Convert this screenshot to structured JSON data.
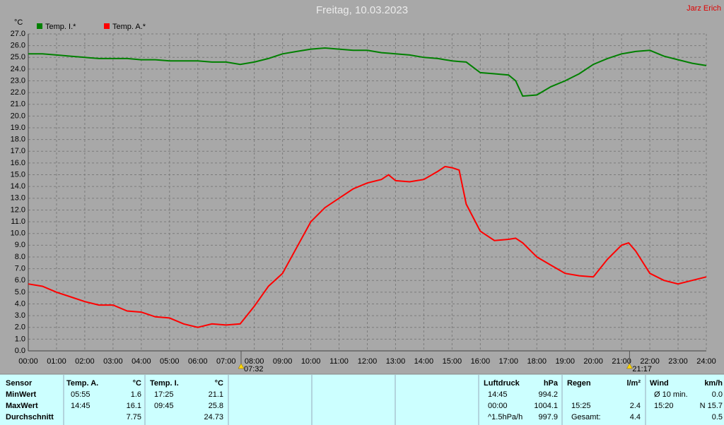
{
  "chart_data": {
    "type": "line",
    "title": "Freitag, 10.03.2023",
    "y_label": "°C",
    "x": [
      0,
      0.5,
      1,
      1.5,
      2,
      2.5,
      3,
      3.5,
      4,
      4.5,
      5,
      5.5,
      6,
      6.5,
      7,
      7.5,
      8,
      8.5,
      9,
      9.5,
      10,
      10.5,
      11,
      11.5,
      12,
      12.5,
      12.75,
      13,
      13.5,
      14,
      14.5,
      14.75,
      15,
      15.25,
      15.5,
      16,
      16.5,
      17,
      17.25,
      17.5,
      18,
      18.5,
      19,
      19.5,
      20,
      20.5,
      21,
      21.25,
      21.5,
      22,
      22.5,
      23,
      23.5,
      24
    ],
    "series": [
      {
        "name": "Temp. I.*",
        "color": "#008000",
        "values": [
          25.3,
          25.3,
          25.2,
          25.1,
          25.0,
          24.9,
          24.9,
          24.9,
          24.8,
          24.8,
          24.7,
          24.7,
          24.7,
          24.6,
          24.6,
          24.4,
          24.6,
          24.9,
          25.3,
          25.5,
          25.7,
          25.8,
          25.7,
          25.6,
          25.6,
          25.4,
          25.35,
          25.3,
          25.2,
          25.0,
          24.9,
          24.8,
          24.7,
          24.65,
          24.6,
          23.7,
          23.6,
          23.5,
          23.0,
          21.7,
          21.8,
          22.5,
          23.0,
          23.6,
          24.4,
          24.9,
          25.3,
          25.4,
          25.5,
          25.6,
          25.1,
          24.8,
          24.5,
          24.3
        ]
      },
      {
        "name": "Temp. A.*",
        "color": "#ff0000",
        "values": [
          5.7,
          5.5,
          5.0,
          4.6,
          4.2,
          3.9,
          3.9,
          3.4,
          3.3,
          2.9,
          2.8,
          2.3,
          2.0,
          2.3,
          2.2,
          2.3,
          3.8,
          5.5,
          6.6,
          8.8,
          11.0,
          12.2,
          13.0,
          13.8,
          14.3,
          14.6,
          15.0,
          14.5,
          14.4,
          14.6,
          15.3,
          15.7,
          15.6,
          15.4,
          12.5,
          10.2,
          9.4,
          9.5,
          9.6,
          9.2,
          8.0,
          7.3,
          6.6,
          6.4,
          6.3,
          7.8,
          9.0,
          9.2,
          8.5,
          6.6,
          6.0,
          5.7,
          6.0,
          6.3
        ]
      }
    ],
    "xlim": [
      0,
      24
    ],
    "xticks": [
      {
        "value": 0,
        "label": "00:00"
      },
      {
        "value": 1,
        "label": "01:00"
      },
      {
        "value": 2,
        "label": "02:00"
      },
      {
        "value": 3,
        "label": "03:00"
      },
      {
        "value": 4,
        "label": "04:00"
      },
      {
        "value": 5,
        "label": "05:00"
      },
      {
        "value": 6,
        "label": "06:00"
      },
      {
        "value": 7,
        "label": "07:00"
      },
      {
        "value": 8,
        "label": "08:00"
      },
      {
        "value": 9,
        "label": "09:00"
      },
      {
        "value": 10,
        "label": "10:00"
      },
      {
        "value": 11,
        "label": "11:00"
      },
      {
        "value": 12,
        "label": "12:00"
      },
      {
        "value": 13,
        "label": "13:00"
      },
      {
        "value": 14,
        "label": "14:00"
      },
      {
        "value": 15,
        "label": "15:00"
      },
      {
        "value": 16,
        "label": "16:00"
      },
      {
        "value": 17,
        "label": "17:00"
      },
      {
        "value": 18,
        "label": "18:00"
      },
      {
        "value": 19,
        "label": "19:00"
      },
      {
        "value": 20,
        "label": "20:00"
      },
      {
        "value": 21,
        "label": "21:00"
      },
      {
        "value": 22,
        "label": "22:00"
      },
      {
        "value": 23,
        "label": "23:00"
      },
      {
        "value": 24,
        "label": "24:00"
      }
    ],
    "ylim": [
      0,
      27
    ],
    "yticks": [
      {
        "value": 0,
        "label": "0.0"
      },
      {
        "value": 1,
        "label": "1.0"
      },
      {
        "value": 2,
        "label": "2.0"
      },
      {
        "value": 3,
        "label": "3.0"
      },
      {
        "value": 4,
        "label": "4.0"
      },
      {
        "value": 5,
        "label": "5.0"
      },
      {
        "value": 6,
        "label": "6.0"
      },
      {
        "value": 7,
        "label": "7.0"
      },
      {
        "value": 8,
        "label": "8.0"
      },
      {
        "value": 9,
        "label": "9.0"
      },
      {
        "value": 10,
        "label": "10.0"
      },
      {
        "value": 11,
        "label": "11.0"
      },
      {
        "value": 12,
        "label": "12.0"
      },
      {
        "value": 13,
        "label": "13.0"
      },
      {
        "value": 14,
        "label": "14.0"
      },
      {
        "value": 15,
        "label": "15.0"
      },
      {
        "value": 16,
        "label": "16.0"
      },
      {
        "value": 17,
        "label": "17.0"
      },
      {
        "value": 18,
        "label": "18.0"
      },
      {
        "value": 19,
        "label": "19.0"
      },
      {
        "value": 20,
        "label": "20.0"
      },
      {
        "value": 21,
        "label": "21.0"
      },
      {
        "value": 22,
        "label": "22.0"
      },
      {
        "value": 23,
        "label": "23.0"
      },
      {
        "value": 24,
        "label": "24.0"
      },
      {
        "value": 25,
        "label": "25.0"
      },
      {
        "value": 26,
        "label": "26.0"
      },
      {
        "value": 27,
        "label": "27.0"
      }
    ],
    "grid": true,
    "sun_markers": [
      {
        "value": 7.533,
        "label": "07:32"
      },
      {
        "value": 21.283,
        "label": "21:17"
      }
    ]
  },
  "author": "Jarz Erich",
  "table": {
    "sensor_column": [
      "Sensor",
      "MinWert",
      "MaxWert",
      "Durchschnitt"
    ],
    "groups": [
      {
        "name": "Temp. A.",
        "unit": "°C",
        "rows": [
          [
            "05:55",
            "1.6"
          ],
          [
            "14:45",
            "16.1"
          ],
          [
            null,
            "7.75"
          ]
        ]
      },
      {
        "name": "Temp. I.",
        "unit": "°C",
        "rows": [
          [
            "17:25",
            "21.1"
          ],
          [
            "09:45",
            "25.8"
          ],
          [
            null,
            "24.73"
          ]
        ]
      },
      {
        "name": "Luftdruck",
        "unit": "hPa",
        "rows": [
          [
            "14:45",
            "994.2"
          ],
          [
            "00:00",
            "1004.1"
          ],
          [
            "^1.5hPa/h",
            "997.9"
          ]
        ]
      },
      {
        "name": "Regen",
        "unit": "l/m²",
        "rows": [
          [
            null,
            null
          ],
          [
            "15:25",
            "2.4"
          ],
          [
            "Gesamt:",
            "4.4"
          ]
        ]
      },
      {
        "name": "Wind",
        "unit": "km/h",
        "rows": [
          [
            "Ø 10 min.",
            "0.0"
          ],
          [
            "15:20",
            "N 15.7"
          ],
          [
            null,
            "0.5"
          ]
        ]
      }
    ]
  }
}
